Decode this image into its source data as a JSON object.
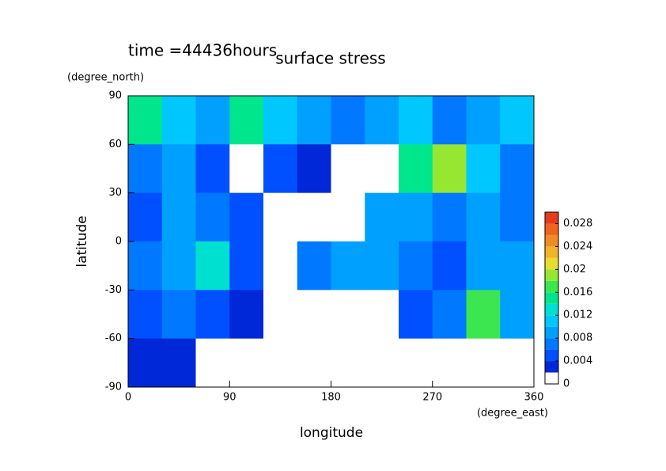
{
  "chart_data": {
    "type": "contour",
    "title": "surface stress",
    "subtitle": "time =44436hours",
    "x_label": "longitude",
    "x_units": "(degree_east)",
    "y_label": "latitude",
    "y_units": "(degree_north)",
    "xlim": [
      0,
      360
    ],
    "xticks": [
      0,
      90,
      180,
      270,
      360
    ],
    "ylim": [
      -90,
      90
    ],
    "yticks": [
      90,
      60,
      30,
      0,
      -30,
      -60,
      -90
    ],
    "x": [
      15,
      45,
      75,
      105,
      135,
      165,
      195,
      225,
      255,
      285,
      315,
      345
    ],
    "y": [
      75,
      45,
      15,
      -15,
      -45,
      -75
    ],
    "z": [
      [
        0.014,
        0.01,
        0.008,
        0.014,
        0.01,
        0.008,
        0.006,
        0.008,
        0.01,
        0.006,
        0.008,
        0.01
      ],
      [
        0.006,
        0.008,
        0.004,
        0,
        0.004,
        0.002,
        0,
        0,
        0.014,
        0.018,
        0.01,
        0.006
      ],
      [
        0.004,
        0.008,
        0.006,
        0.004,
        0,
        0,
        0,
        0.008,
        0.008,
        0.006,
        0.008,
        0.006
      ],
      [
        0.006,
        0.008,
        0.012,
        0.004,
        0,
        0.006,
        0.008,
        0.008,
        0.006,
        0.004,
        0.008,
        0.008
      ],
      [
        0.004,
        0.006,
        0.004,
        0.002,
        0,
        0,
        0,
        0,
        0.004,
        0.006,
        0.016,
        0.008
      ],
      [
        0.002,
        0.002,
        0,
        0,
        0,
        0,
        0,
        0,
        0,
        0,
        0,
        0
      ]
    ],
    "colorbar": {
      "lim": [
        0,
        0.03
      ],
      "levels": [
        0,
        0.002,
        0.004,
        0.006,
        0.008,
        0.01,
        0.012,
        0.014,
        0.016,
        0.018,
        0.02,
        0.022,
        0.024,
        0.026,
        0.028,
        0.03
      ],
      "colors": [
        "#ffffff",
        "#0028d8",
        "#0050ff",
        "#0078ff",
        "#00a0ff",
        "#00c8ff",
        "#00e0d0",
        "#00e68c",
        "#3ce650",
        "#96e632",
        "#e6dc32",
        "#f0b428",
        "#f08c28",
        "#f0641e",
        "#e63c1e"
      ],
      "ticks": [
        0,
        0.004,
        0.008,
        0.012,
        0.016,
        0.02,
        0.024,
        0.028
      ]
    }
  }
}
